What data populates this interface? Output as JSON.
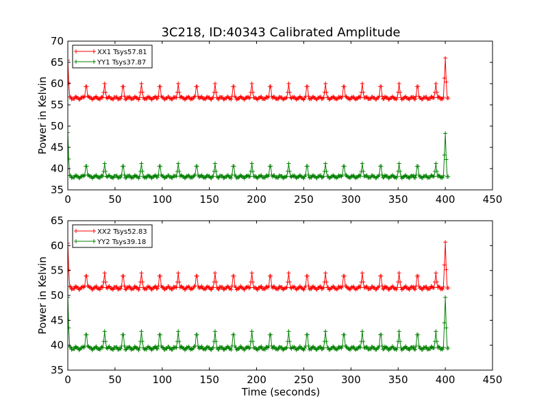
{
  "figure": {
    "title": "3C218, ID:40343 Calibrated Amplitude",
    "xlabel": "Time (seconds)",
    "colors": {
      "xx": "#ff0000",
      "yy": "#008000",
      "axes": "#000000",
      "background": "#ffffff"
    }
  },
  "chart_data": [
    {
      "type": "line",
      "title": "3C218, ID:40343 Calibrated Amplitude",
      "xlabel": "",
      "ylabel": "Power in Kelvin",
      "xlim": [
        0,
        450
      ],
      "ylim": [
        35,
        70
      ],
      "xticks": [
        0,
        50,
        100,
        150,
        200,
        250,
        300,
        350,
        400,
        450
      ],
      "yticks": [
        35,
        40,
        45,
        50,
        55,
        60,
        65,
        70
      ],
      "grid": false,
      "legend": "top-left",
      "marker": "plus",
      "peak_times": [
        19.5,
        39,
        58.5,
        78,
        97.5,
        117,
        136.5,
        156,
        175.5,
        195,
        214.5,
        234,
        253.5,
        273,
        292.5,
        312,
        331.5,
        351,
        370.5,
        390
      ],
      "series": [
        {
          "name": "XX1 Tsys57.81",
          "color": "#ff0000",
          "start": [
            0,
            65.5
          ],
          "baseline": 56.6,
          "peak": 60.0,
          "end_peak": 66.0,
          "end_time": 400,
          "last_x": 403
        },
        {
          "name": "YY1 Tsys37.87",
          "color": "#008000",
          "start": [
            0,
            48.5
          ],
          "baseline": 38.1,
          "peak": 41.2,
          "end_peak": 48.3,
          "end_time": 400,
          "last_x": 403
        }
      ]
    },
    {
      "type": "line",
      "title": "",
      "xlabel": "Time (seconds)",
      "ylabel": "Power in Kelvin",
      "xlim": [
        0,
        450
      ],
      "ylim": [
        35,
        65
      ],
      "xticks": [
        0,
        50,
        100,
        150,
        200,
        250,
        300,
        350,
        400,
        450
      ],
      "yticks": [
        35,
        40,
        45,
        50,
        55,
        60,
        65
      ],
      "grid": false,
      "legend": "top-left",
      "marker": "plus",
      "peak_times": [
        19.5,
        39,
        58.5,
        78,
        97.5,
        117,
        136.5,
        156,
        175.5,
        195,
        214.5,
        234,
        253.5,
        273,
        292.5,
        312,
        331.5,
        351,
        370.5,
        390
      ],
      "series": [
        {
          "name": "XX2 Tsys52.83",
          "color": "#ff0000",
          "start": [
            0,
            60.5
          ],
          "baseline": 51.5,
          "peak": 54.5,
          "end_peak": 60.7,
          "end_time": 400,
          "last_x": 403
        },
        {
          "name": "YY2 Tsys39.18",
          "color": "#008000",
          "start": [
            0,
            49.6
          ],
          "baseline": 39.4,
          "peak": 42.8,
          "end_peak": 49.6,
          "end_time": 400,
          "last_x": 403
        }
      ]
    }
  ]
}
